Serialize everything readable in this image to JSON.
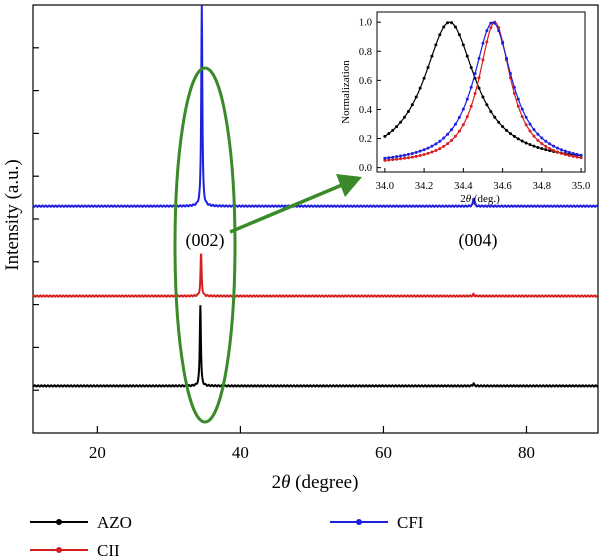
{
  "chart_data": [
    {
      "type": "line",
      "xlabel": "2θ (degree)",
      "xlabel_parts": {
        "var": "θ",
        "pre": "2",
        "post": " (degree)"
      },
      "ylabel": "Intensity (a.u.)",
      "xlim": [
        11,
        90
      ],
      "xticks": [
        20,
        40,
        60,
        80
      ],
      "y_tick_labels": "none",
      "legend_placement": "bottom",
      "peak_labels": [
        "(002)",
        "(004)"
      ],
      "series": [
        {
          "name": "AZO",
          "color": "#000000",
          "baseline": 0.11,
          "peaks": [
            {
              "x": 34.4,
              "height": 0.19
            },
            {
              "x": 72.6,
              "height": 0.006
            }
          ]
        },
        {
          "name": "CII",
          "color": "#d62020",
          "baseline": 0.32,
          "peaks": [
            {
              "x": 34.5,
              "height": 0.1
            },
            {
              "x": 72.6,
              "height": 0.004
            }
          ]
        },
        {
          "name": "CFI",
          "color": "#1f1fe0",
          "baseline": 0.53,
          "peaks": [
            {
              "x": 34.6,
              "height": 0.47
            },
            {
              "x": 72.6,
              "height": 0.02
            }
          ]
        }
      ]
    },
    {
      "type": "line",
      "xlabel": "2θ (deg.)",
      "xlabel_parts": {
        "var": "θ",
        "pre": "2",
        "post": " (deg.)"
      },
      "ylabel": "Normalization",
      "xlim": [
        33.96,
        35.02
      ],
      "ylim": [
        -0.03,
        1.07
      ],
      "xticks": [
        34.0,
        34.2,
        34.4,
        34.6,
        34.8,
        35.0
      ],
      "xtick_labels": [
        "34.0",
        "34.2",
        "34.4",
        "34.6",
        "34.8",
        "35.0"
      ],
      "yticks": [
        0.0,
        0.2,
        0.4,
        0.6,
        0.8,
        1.0
      ],
      "ytick_labels": [
        "0.0",
        "0.2",
        "0.4",
        "0.6",
        "0.8",
        "1.0"
      ],
      "series": [
        {
          "name": "AZO",
          "color": "#000000",
          "center": 34.33,
          "hwhm": 0.16,
          "background": 0.03
        },
        {
          "name": "CII",
          "color": "#d62020",
          "center": 34.56,
          "hwhm": 0.1,
          "background": 0.02
        },
        {
          "name": "CFI",
          "color": "#1f1fe0",
          "center": 34.55,
          "hwhm": 0.12,
          "background": 0.02
        }
      ]
    }
  ],
  "legend": [
    {
      "label": "AZO",
      "color": "#000000"
    },
    {
      "label": "CII",
      "color": "#d62020"
    },
    {
      "label": "CFI",
      "color": "#1f1fe0"
    }
  ],
  "colors": {
    "highlight_ellipse": "#3a8a2a",
    "arrow": "#3a8a2a"
  }
}
